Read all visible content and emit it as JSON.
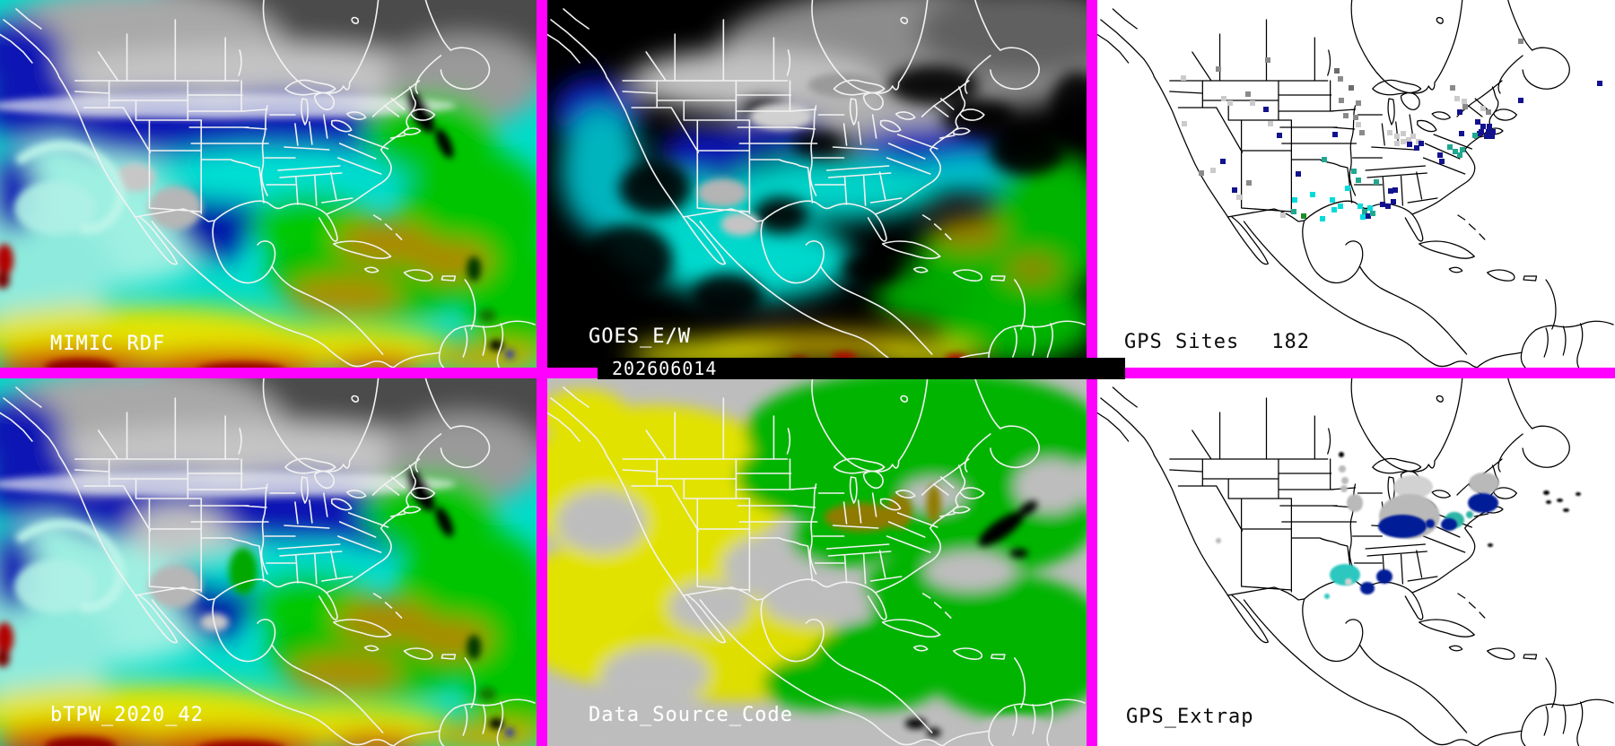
{
  "timestamp": "202606014",
  "palette": {
    "divider": "#ff00ff",
    "label_light": "#ffffff",
    "label_dark": "#0a0a0a",
    "tpw_gray_dry": "#4c4c4c",
    "tpw_blue": "#0a12b4",
    "tpw_cyan": "#00dcca",
    "tpw_green": "#00c400",
    "tpw_olive": "#ad8800",
    "tpw_yellow": "#e4e400",
    "tpw_red": "#cc0000",
    "goes_nodata": "#000000",
    "dsc_gray": "#bdbdbd",
    "dsc_yellow": "#e2e200",
    "dsc_green": "#00b400",
    "dsc_olive": "#8f7a00"
  },
  "panels": {
    "mimic": {
      "label": "MIMIC RDF"
    },
    "goes": {
      "label": "GOES_E/W"
    },
    "gps_sites": {
      "label": "GPS Sites",
      "count": "182"
    },
    "btpw": {
      "label": "bTPW_2020_42"
    },
    "dsc": {
      "label": "Data_Source_Code"
    },
    "gps_extrap": {
      "label": "GPS_Extrap"
    }
  },
  "dot_colors": {
    "gray": "#8a8a8a",
    "dimgray": "#6c6c6c",
    "lightgray": "#cbcbcb",
    "navy": "#12128e",
    "cyan": "#00dcdc",
    "teal": "#20a890",
    "green": "#1e8c28",
    "black": "#000000"
  },
  "blob_colors": {
    "gray": "#b9b9b9",
    "lgray": "#d2d2d2",
    "navy": "#001c96",
    "teal": "#2cb4a4",
    "cyan": "#2cc8c0",
    "black": "#000000"
  },
  "gps_sites_dots": [
    [
      32.9,
      16.3,
      "gray"
    ],
    [
      23.4,
      18.8,
      "gray"
    ],
    [
      16.6,
      21.2,
      "lightgray"
    ],
    [
      81.8,
      11.2,
      "gray"
    ],
    [
      46.3,
      19.3,
      "dimgray"
    ],
    [
      47.0,
      21.5,
      "gray"
    ],
    [
      49.0,
      23.9,
      "dimgray"
    ],
    [
      47.1,
      27.3,
      "gray"
    ],
    [
      50.4,
      28.0,
      "gray"
    ],
    [
      48.0,
      31.5,
      "gray"
    ],
    [
      49.9,
      32.0,
      "gray"
    ],
    [
      50.4,
      33.9,
      "lightgray"
    ],
    [
      51.1,
      36.1,
      "gray"
    ],
    [
      68.6,
      23.9,
      "gray"
    ],
    [
      24.4,
      26.8,
      "lightgray"
    ],
    [
      25.6,
      28.0,
      "lightgray"
    ],
    [
      29.1,
      25.6,
      "gray"
    ],
    [
      30.0,
      28.0,
      "lightgray"
    ],
    [
      16.8,
      33.7,
      "lightgray"
    ],
    [
      32.6,
      29.8,
      "navy"
    ],
    [
      45.9,
      36.6,
      "navy"
    ],
    [
      33.4,
      33.7,
      "lightgray"
    ],
    [
      35.2,
      36.8,
      "navy"
    ],
    [
      56.5,
      36.1,
      "lightgray"
    ],
    [
      57.9,
      37.1,
      "lightgray"
    ],
    [
      59.1,
      36.3,
      "lightgray"
    ],
    [
      60.1,
      38.0,
      "lightgray"
    ],
    [
      61.0,
      37.1,
      "lightgray"
    ],
    [
      62.0,
      38.5,
      "lightgray"
    ],
    [
      59.1,
      38.5,
      "lightgray"
    ],
    [
      57.9,
      39.0,
      "lightgray"
    ],
    [
      60.3,
      39.3,
      "navy"
    ],
    [
      62.6,
      39.0,
      "navy"
    ],
    [
      61.7,
      40.2,
      "navy"
    ],
    [
      71.1,
      29.0,
      "gray"
    ],
    [
      81.8,
      27.3,
      "navy"
    ],
    [
      97.1,
      22.7,
      "navy"
    ],
    [
      73.8,
      36.3,
      "navy"
    ],
    [
      70.4,
      36.3,
      "navy"
    ],
    [
      73.5,
      33.2,
      "navy"
    ],
    [
      74.5,
      34.4,
      "navy"
    ],
    [
      75.6,
      35.9,
      "navy"
    ],
    [
      76.3,
      37.1,
      "navy"
    ],
    [
      75.2,
      37.1,
      "navy"
    ],
    [
      74.2,
      35.9,
      "navy"
    ],
    [
      73.0,
      36.8,
      "teal"
    ],
    [
      75.7,
      34.4,
      "navy"
    ],
    [
      76.4,
      35.9,
      "navy"
    ],
    [
      74.5,
      29.5,
      "lightgray"
    ],
    [
      75.6,
      30.5,
      "gray"
    ],
    [
      69.5,
      26.8,
      "lightgray"
    ],
    [
      70.8,
      27.6,
      "lightgray"
    ],
    [
      70.0,
      30.5,
      "navy"
    ],
    [
      66.2,
      42.2,
      "navy"
    ],
    [
      66.6,
      43.9,
      "navy"
    ],
    [
      68.1,
      40.0,
      "teal"
    ],
    [
      69.2,
      41.2,
      "teal"
    ],
    [
      70.0,
      42.2,
      "teal"
    ],
    [
      70.5,
      40.7,
      "teal"
    ],
    [
      24.3,
      43.9,
      "navy"
    ],
    [
      20.1,
      47.1,
      "gray"
    ],
    [
      22.4,
      46.3,
      "lightgray"
    ],
    [
      26.5,
      51.7,
      "navy"
    ],
    [
      29.3,
      49.8,
      "gray"
    ],
    [
      27.4,
      53.7,
      "lightgray"
    ],
    [
      38.8,
      47.3,
      "navy"
    ],
    [
      43.8,
      43.4,
      "teal"
    ],
    [
      41.6,
      52.9,
      "cyan"
    ],
    [
      45.4,
      54.4,
      "cyan"
    ],
    [
      38.1,
      54.4,
      "cyan"
    ],
    [
      45.8,
      57.1,
      "cyan"
    ],
    [
      43.5,
      59.5,
      "cyan"
    ],
    [
      47.0,
      56.1,
      "cyan"
    ],
    [
      39.9,
      58.8,
      "green"
    ],
    [
      49.6,
      46.6,
      "teal"
    ],
    [
      50.4,
      49.0,
      "teal"
    ],
    [
      48.4,
      51.2,
      "cyan"
    ],
    [
      53.9,
      49.5,
      "teal"
    ],
    [
      55.1,
      55.6,
      "navy"
    ],
    [
      56.7,
      52.0,
      "navy"
    ],
    [
      57.5,
      51.7,
      "navy"
    ],
    [
      56.2,
      56.1,
      "navy"
    ],
    [
      57.2,
      54.9,
      "navy"
    ],
    [
      50.8,
      56.1,
      "cyan"
    ],
    [
      51.6,
      57.6,
      "teal"
    ],
    [
      52.7,
      56.6,
      "cyan"
    ],
    [
      52.3,
      58.8,
      "navy"
    ],
    [
      53.2,
      58.0,
      "teal"
    ],
    [
      51.3,
      59.0,
      "cyan"
    ],
    [
      35.9,
      58.5,
      "lightgray"
    ],
    [
      38.0,
      57.6,
      "teal"
    ]
  ],
  "gps_extrap_blobs": [
    [
      61.0,
      29.5,
      3.8,
      3.2,
      "lgray"
    ],
    [
      60.3,
      37.6,
      5.9,
      6.1,
      "gray"
    ],
    [
      58.9,
      40.2,
      4.7,
      3.2,
      "navy"
    ],
    [
      64.3,
      39.5,
      0.9,
      1.2,
      "navy"
    ],
    [
      74.7,
      28.5,
      2.9,
      2.9,
      "gray"
    ],
    [
      74.5,
      33.9,
      2.9,
      2.7,
      "navy"
    ],
    [
      71.9,
      37.1,
      0.7,
      1.0,
      "teal"
    ],
    [
      69.0,
      38.5,
      1.9,
      2.2,
      "teal"
    ],
    [
      67.9,
      39.8,
      1.6,
      1.7,
      "navy"
    ],
    [
      47.1,
      20.7,
      0.5,
      0.7,
      "black"
    ],
    [
      47.3,
      24.6,
      0.7,
      1.0,
      "gray"
    ],
    [
      47.8,
      27.8,
      0.7,
      1.0,
      "gray"
    ],
    [
      47.7,
      30.0,
      0.7,
      1.0,
      "gray"
    ],
    [
      49.7,
      33.9,
      1.6,
      2.4,
      "gray"
    ],
    [
      47.8,
      53.4,
      2.9,
      2.9,
      "cyan"
    ],
    [
      48.5,
      55.4,
      0.7,
      1.0,
      "lgray"
    ],
    [
      55.5,
      53.9,
      1.6,
      2.0,
      "navy"
    ],
    [
      52.2,
      57.1,
      1.4,
      1.7,
      "navy"
    ],
    [
      44.4,
      59.3,
      0.5,
      0.7,
      "cyan"
    ],
    [
      23.4,
      44.1,
      0.5,
      0.7,
      "gray"
    ],
    [
      86.7,
      31.0,
      0.6,
      0.6,
      "black"
    ],
    [
      89.4,
      33.2,
      0.6,
      0.5,
      "black"
    ],
    [
      87.2,
      33.7,
      0.5,
      0.5,
      "black"
    ],
    [
      90.5,
      35.9,
      0.6,
      0.5,
      "black"
    ],
    [
      92.9,
      31.5,
      0.5,
      0.5,
      "black"
    ],
    [
      75.9,
      45.4,
      0.5,
      0.5,
      "black"
    ]
  ]
}
